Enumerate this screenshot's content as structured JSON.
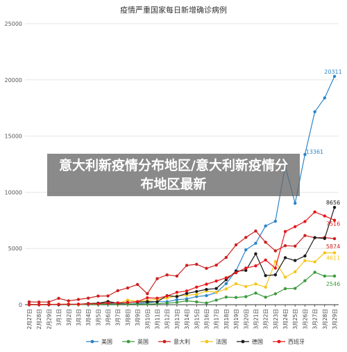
{
  "overlay": {
    "text": "意大利新疫情分布地区/意大利新疫情分布地区最新"
  },
  "colors": {
    "美国": "#2b83c6",
    "英国": "#3d9a3d",
    "意大利": "#cc1f1f",
    "法国": "#f5c518",
    "德国": "#1a1a1a",
    "西班牙": "#e8161b",
    "grid": "#e6e6e6",
    "axis": "#333333"
  },
  "chart_data": {
    "type": "line",
    "title": "疫情严重国家每日新增确诊病例",
    "xlabel": "",
    "ylabel": "",
    "ylim": [
      0,
      25000
    ],
    "yticks": [
      0,
      5000,
      10000,
      15000,
      20000,
      25000
    ],
    "grid": true,
    "legend_position": "bottom",
    "categories": [
      "2月27日",
      "2月28日",
      "2月29日",
      "3月1日",
      "3月2日",
      "3月3日",
      "3月4日",
      "3月5日",
      "3月6日",
      "3月7日",
      "3月8日",
      "3月9日",
      "3月10日",
      "3月11日",
      "3月12日",
      "3月13日",
      "3月14日",
      "3月15日",
      "3月16日",
      "3月17日",
      "3月18日",
      "3月19日",
      "3月20日",
      "3月21日",
      "3月22日",
      "3月23日",
      "3月24日",
      "3月25日",
      "3月26日",
      "3月27日",
      "3月28日",
      "3月29日"
    ],
    "series": [
      {
        "name": "美国",
        "color": "#2b83c6",
        "end_label": "20311",
        "values": [
          1,
          0,
          6,
          4,
          20,
          24,
          20,
          65,
          92,
          128,
          63,
          106,
          165,
          269,
          263,
          442,
          512,
          727,
          810,
          1085,
          1874,
          3026,
          4883,
          5467,
          7005,
          7423,
          12325,
          9021,
          13361,
          17161,
          18394,
          20311
        ],
        "annotations": [
          {
            "index": 28,
            "label": "13361"
          }
        ]
      },
      {
        "name": "英国",
        "color": "#3d9a3d",
        "end_label": "2546",
        "values": [
          2,
          0,
          3,
          12,
          4,
          11,
          34,
          30,
          48,
          43,
          67,
          48,
          52,
          83,
          134,
          208,
          342,
          251,
          152,
          407,
          676,
          643,
          714,
          1035,
          665,
          967,
          1427,
          1452,
          2129,
          2885,
          2546,
          2546
        ]
      },
      {
        "name": "意大利",
        "color": "#cc1f1f",
        "end_label": "5874",
        "values": [
          250,
          238,
          240,
          566,
          342,
          466,
          587,
          769,
          778,
          1247,
          1492,
          1797,
          977,
          2313,
          2651,
          2547,
          3497,
          3590,
          3233,
          3526,
          4207,
          5322,
          5986,
          6557,
          5560,
          4789,
          5249,
          5210,
          6153,
          5959,
          5974,
          5874
        ]
      },
      {
        "name": "法国",
        "color": "#f5c518",
        "end_label": "4611",
        "values": [
          20,
          19,
          43,
          30,
          61,
          13,
          84,
          92,
          276,
          103,
          410,
          286,
          372,
          497,
          595,
          785,
          838,
          924,
          1210,
          1097,
          1404,
          1861,
          1617,
          1847,
          1559,
          3838,
          2446,
          2931,
          3922,
          3809,
          4611,
          4611
        ]
      },
      {
        "name": "德国",
        "color": "#1a1a1a",
        "end_label": "8656",
        "values": [
          26,
          11,
          26,
          13,
          32,
          40,
          104,
          132,
          282,
          129,
          212,
          236,
          270,
          257,
          802,
          720,
          1001,
          1176,
          1360,
          1442,
          2223,
          2976,
          3050,
          4528,
          2589,
          2660,
          4183,
          3930,
          4337,
          5965,
          5891,
          8656
        ]
      },
      {
        "name": "西班牙",
        "color": "#e8161b",
        "end_label": "7516",
        "values": [
          13,
          5,
          13,
          39,
          41,
          46,
          72,
          87,
          146,
          168,
          194,
          273,
          615,
          579,
          770,
          1102,
          1222,
          1564,
          1825,
          2106,
          2393,
          2839,
          3260,
          3453,
          3974,
          3252,
          6510,
          6941,
          7400,
          8251,
          7894,
          7516
        ]
      }
    ]
  }
}
